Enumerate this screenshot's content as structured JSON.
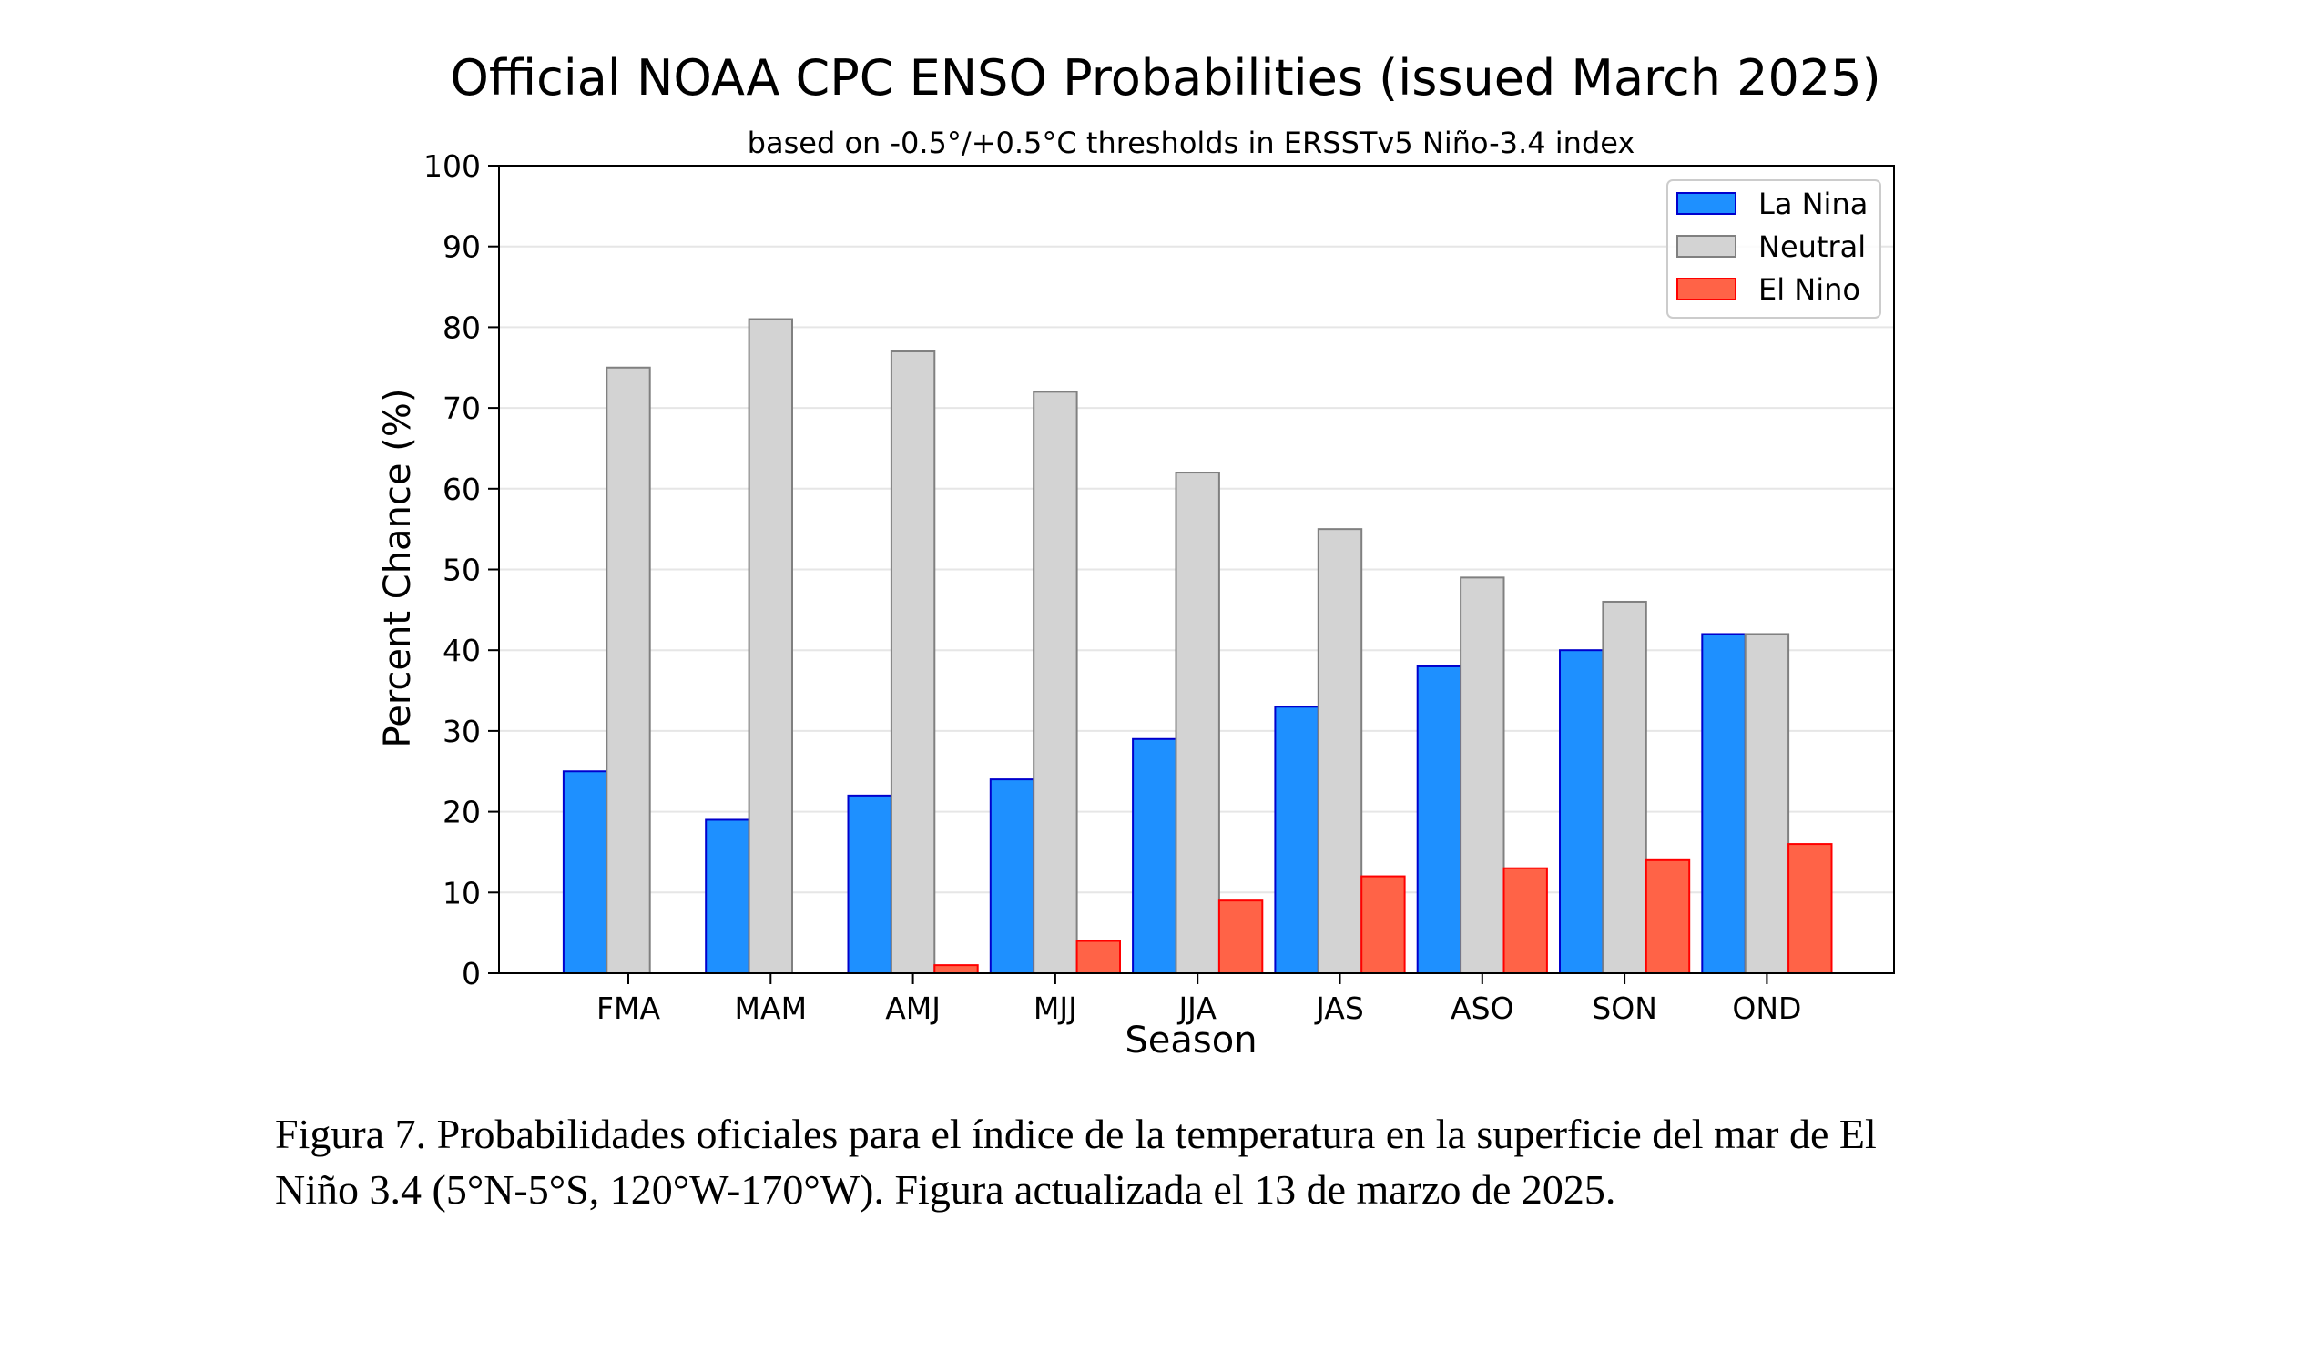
{
  "chart_data": {
    "type": "bar",
    "title": "Official NOAA CPC ENSO Probabilities (issued March 2025)",
    "subtitle": "based on -0.5°/+0.5°C thresholds in ERSSTv5 Niño-3.4 index",
    "xlabel": "Season",
    "ylabel": "Percent Chance (%)",
    "ylim": [
      0,
      100
    ],
    "yticks": [
      0,
      10,
      20,
      30,
      40,
      50,
      60,
      70,
      80,
      90,
      100
    ],
    "grid": true,
    "legend_position": "top-right",
    "categories": [
      "FMA",
      "MAM",
      "AMJ",
      "MJJ",
      "JJA",
      "JAS",
      "ASO",
      "SON",
      "OND"
    ],
    "series": [
      {
        "name": "La Nina",
        "color": "#1E90FF",
        "edge": "#0000CD",
        "values": [
          25,
          19,
          22,
          24,
          29,
          33,
          38,
          40,
          42
        ]
      },
      {
        "name": "Neutral",
        "color": "#D3D3D3",
        "edge": "#808080",
        "values": [
          75,
          81,
          77,
          72,
          62,
          55,
          49,
          46,
          42
        ]
      },
      {
        "name": "El Nino",
        "color": "#FF6347",
        "edge": "#FF0000",
        "values": [
          0,
          0,
          1,
          4,
          9,
          12,
          13,
          14,
          16
        ]
      }
    ]
  },
  "caption": {
    "line1": "Figura 7. Probabilidades oficiales para el índice de la temperatura en la superficie del mar de El",
    "line2": "Niño 3.4  (5°N-5°S, 120°W-170°W). Figura actualizada el 13 de marzo de 2025."
  }
}
